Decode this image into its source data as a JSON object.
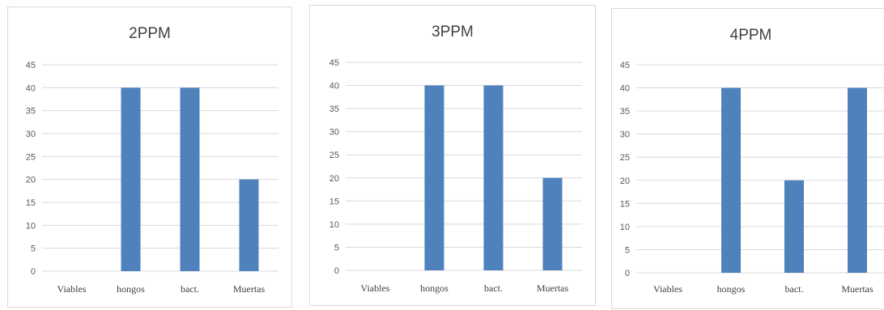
{
  "chart_data": [
    {
      "type": "bar",
      "title": "2PPM",
      "categories": [
        "Viables",
        "hongos",
        "bact.",
        "Muertas"
      ],
      "values": [
        0,
        40,
        40,
        20
      ],
      "ylim": [
        0,
        45
      ],
      "yticks": [
        0,
        5,
        10,
        15,
        20,
        25,
        30,
        35,
        40,
        45
      ],
      "grid": true,
      "bar_color": "#4f81bd",
      "grid_color": "#d9d9d9"
    },
    {
      "type": "bar",
      "title": "3PPM",
      "categories": [
        "Viables",
        "hongos",
        "bact.",
        "Muertas"
      ],
      "values": [
        0,
        40,
        40,
        20
      ],
      "ylim": [
        0,
        45
      ],
      "yticks": [
        0,
        5,
        10,
        15,
        20,
        25,
        30,
        35,
        40,
        45
      ],
      "grid": true,
      "bar_color": "#4f81bd",
      "grid_color": "#d9d9d9"
    },
    {
      "type": "bar",
      "title": "4PPM",
      "categories": [
        "Viables",
        "hongos",
        "bact.",
        "Muertas"
      ],
      "values": [
        0,
        40,
        20,
        40
      ],
      "ylim": [
        0,
        45
      ],
      "yticks": [
        0,
        5,
        10,
        15,
        20,
        25,
        30,
        35,
        40,
        45
      ],
      "grid": true,
      "bar_color": "#4f81bd",
      "grid_color": "#d9d9d9"
    }
  ]
}
